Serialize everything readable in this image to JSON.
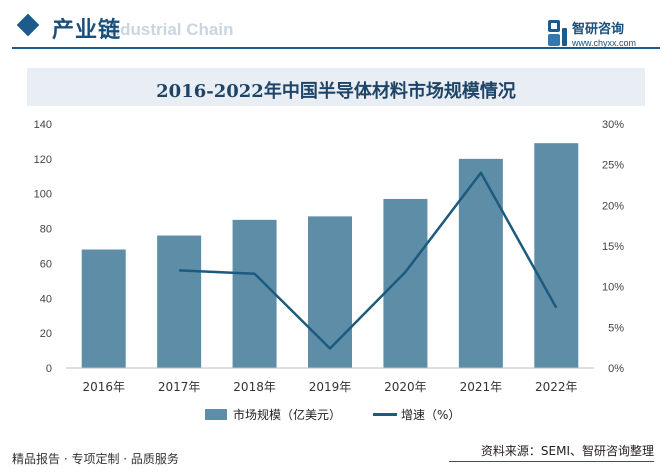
{
  "header": {
    "title": "产业链",
    "subtitle": "Industrial Chain"
  },
  "brand": {
    "name": "智研咨询",
    "url": "www.chyxx.com"
  },
  "footer": {
    "tagline": "精品报告 · 专项定制 · 品质服务",
    "source": "资料来源：SEMI、智研咨询整理"
  },
  "colors": {
    "bar": "#5e8ea7",
    "line": "#1c5a7f",
    "title_band": "#e8eef4",
    "accent": "#1d5b8c"
  },
  "chart_data": {
    "type": "bar",
    "title": "2016-2022年中国半导体材料市场规模情况",
    "categories": [
      "2016年",
      "2017年",
      "2018年",
      "2019年",
      "2020年",
      "2021年",
      "2022年"
    ],
    "series": [
      {
        "name": "市场规模（亿美元）",
        "type": "bar",
        "axis": "left",
        "values": [
          68,
          76,
          85,
          87,
          97,
          120,
          129
        ]
      },
      {
        "name": "增速（%）",
        "type": "line",
        "axis": "right",
        "values": [
          null,
          12,
          11.6,
          2.4,
          11.8,
          24,
          7.4
        ]
      }
    ],
    "ylim": [
      0,
      140
    ],
    "yticks": [
      "0",
      "20",
      "40",
      "60",
      "80",
      "100",
      "120",
      "140"
    ],
    "y2lim": [
      0,
      30
    ],
    "y2ticks": [
      "0%",
      "5%",
      "10%",
      "15%",
      "20%",
      "25%",
      "30%"
    ],
    "legend": "bottom",
    "grid": false
  }
}
